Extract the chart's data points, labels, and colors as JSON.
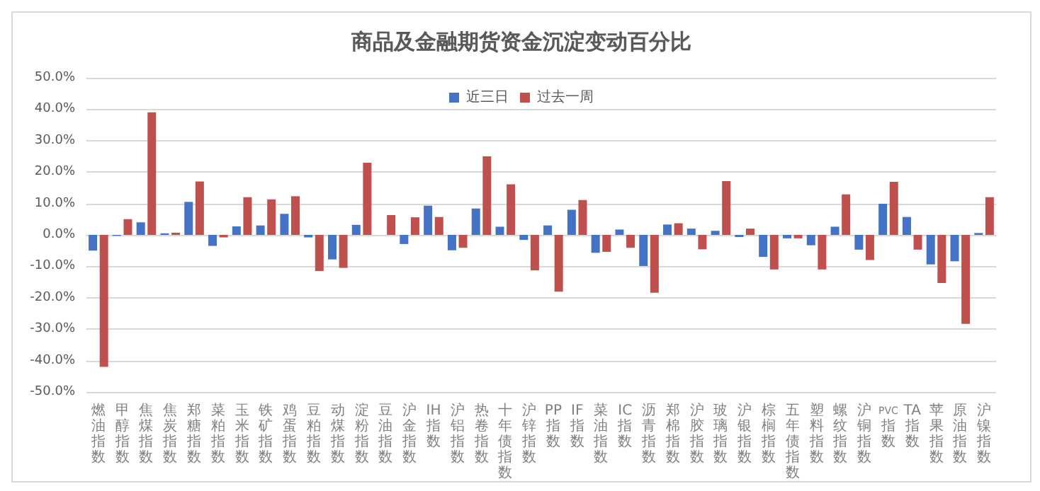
{
  "chart_data": {
    "type": "bar",
    "title": "商品及金融期货资金沉淀变动百分比",
    "categories": [
      "燃油指数",
      "甲醇指数",
      "焦煤指数",
      "焦炭指数",
      "郑糖指数",
      "菜粕指数",
      "玉米指数",
      "铁矿指数",
      "鸡蛋指数",
      "豆粕指数",
      "动煤指数",
      "淀粉指数",
      "豆油指数",
      "沪金指数",
      "IH指数",
      "沪铝指数",
      "热卷指数",
      "十年债指数",
      "沪锌指数",
      "PP指数",
      "IF指数",
      "菜油指数",
      "IC指数",
      "沥青指数",
      "郑棉指数",
      "沪胶指数",
      "玻璃指数",
      "沪银指数",
      "棕榈指数",
      "五年债指数",
      "塑料指数",
      "螺纹指数",
      "沪铜指数",
      "PVC指数",
      "TA指数",
      "苹果指数",
      "原油指数",
      "沪镍指数"
    ],
    "series": [
      {
        "name": "近三日",
        "color": "#4472c4",
        "values": [
          -5,
          -0.3,
          4,
          0.5,
          10.5,
          -3.5,
          2.7,
          3,
          6.7,
          -0.8,
          -7.8,
          3.2,
          0,
          -2.9,
          9.3,
          -4.9,
          8.4,
          2.6,
          -1.6,
          3,
          8,
          -5.7,
          1.7,
          -9.9,
          3.3,
          2,
          1.3,
          -0.7,
          -7,
          -1.1,
          -3.3,
          2.6,
          -4.7,
          9.9,
          5.7,
          -9.4,
          -8.4,
          0.6
        ]
      },
      {
        "name": "过去一周",
        "color": "#c0504d",
        "values": [
          -42,
          5,
          39,
          0.7,
          17,
          -0.8,
          12,
          11.3,
          12.3,
          -11.5,
          -10.5,
          23,
          6.3,
          5.6,
          5.7,
          -4.1,
          25,
          16.1,
          -11.3,
          -18.1,
          11.1,
          -5.4,
          -4.1,
          -18.4,
          3.7,
          -4.6,
          17.1,
          2,
          -11,
          -1.1,
          -11,
          12.9,
          -8,
          16.9,
          -4.7,
          -15.3,
          -28.3,
          12
        ]
      }
    ],
    "ylim": [
      -50,
      50
    ],
    "yticks": [
      {
        "value": -50,
        "label": "-50.0%"
      },
      {
        "value": -40,
        "label": "-40.0%"
      },
      {
        "value": -30,
        "label": "-30.0%"
      },
      {
        "value": -20,
        "label": "-20.0%"
      },
      {
        "value": -10,
        "label": "-10.0%"
      },
      {
        "value": 0,
        "label": "0.0%"
      },
      {
        "value": 10,
        "label": "10.0%"
      },
      {
        "value": 20,
        "label": "20.0%"
      },
      {
        "value": 30,
        "label": "30.0%"
      },
      {
        "value": 40,
        "label": "40.0%"
      },
      {
        "value": 50,
        "label": "50.0%"
      }
    ],
    "grid": "y",
    "legend": "top"
  }
}
